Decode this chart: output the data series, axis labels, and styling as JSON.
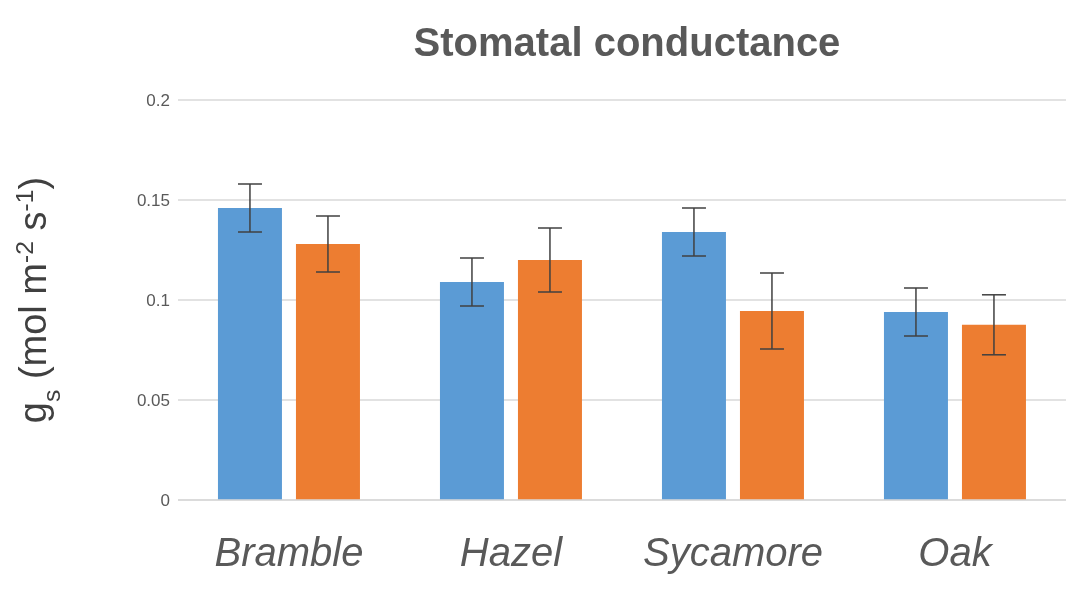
{
  "chart_data": {
    "type": "bar",
    "title": "Stomatal conductance",
    "ylabel": "g$_{s}$ (mol m$^{-2}$ s$^{-1}$)",
    "categories": [
      "Bramble",
      "Hazel",
      "Sycamore",
      "Oak"
    ],
    "series": [
      {
        "color": "#5b9bd5",
        "values": [
          0.146,
          0.109,
          0.134,
          0.094
        ],
        "errors": [
          0.012,
          0.012,
          0.012,
          0.012
        ]
      },
      {
        "color": "#ed7d31",
        "values": [
          0.128,
          0.12,
          0.0945,
          0.0876
        ],
        "errors": [
          0.014,
          0.016,
          0.019,
          0.015
        ]
      }
    ],
    "ylim": [
      0,
      0.2
    ],
    "yticks": [
      0,
      0.05,
      0.1,
      0.15,
      0.2
    ],
    "grid": "y",
    "legend": false
  }
}
